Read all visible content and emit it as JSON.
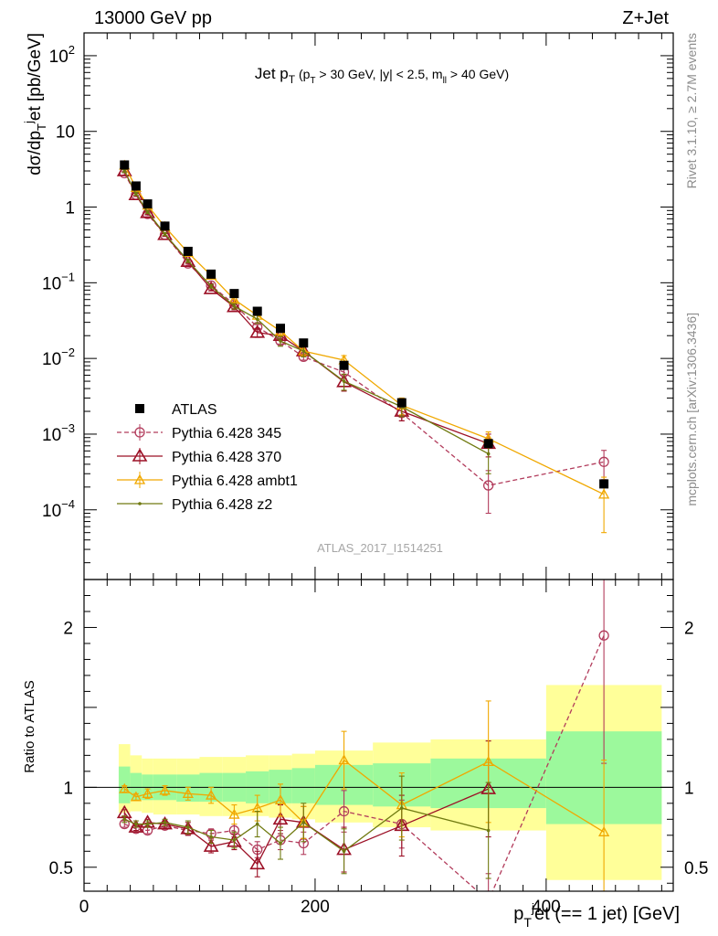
{
  "header": {
    "left": "13000 GeV pp",
    "right": "Z+Jet"
  },
  "side_labels": {
    "rivet": "Rivet 3.1.10, ≥ 2.7M events",
    "mcplots": "mcplots.cern.ch [arXiv:1306.3436]"
  },
  "watermark": "ATLAS_2017_I1514251",
  "colors": {
    "ATLAS": "#000000",
    "p345": "#b23c5c",
    "p370": "#9c1026",
    "ambt1": "#f0a800",
    "z2": "#707a10",
    "band_green": "#9cf99c",
    "band_yellow": "#ffff99"
  },
  "chart_data": [
    {
      "type": "line",
      "panel": "main",
      "title": "Jet p_T (p_T > 30 GeV, |y| < 2.5, m_ll > 40 GeV)",
      "ylabel": "dσ/dp_T^j et [pb/GeV]",
      "xlim": [
        0,
        510
      ],
      "ylim": [
        1.2e-05,
        200
      ],
      "yscale": "log",
      "y_ticks": [
        0.0001,
        0.001,
        0.01,
        0.1,
        1,
        10,
        100
      ],
      "y_tick_labels": [
        "10^-4",
        "10^-3",
        "10^-2",
        "10^-1",
        "1",
        "10",
        "10^2"
      ],
      "x": [
        35,
        45,
        55,
        70,
        90,
        110,
        130,
        150,
        170,
        190,
        225,
        275,
        350,
        450
      ],
      "series": [
        {
          "name": "ATLAS",
          "marker": "square",
          "values": [
            3.6,
            1.9,
            1.1,
            0.56,
            0.26,
            0.13,
            0.072,
            0.042,
            0.025,
            0.016,
            0.0081,
            0.0026,
            0.00075,
            0.00022
          ]
        },
        {
          "name": "Pythia 6.428 345",
          "marker": "circle",
          "dashed": true,
          "values": [
            2.8,
            1.45,
            0.81,
            0.43,
            0.18,
            0.092,
            0.052,
            0.026,
            0.017,
            0.0105,
            0.0066,
            0.0019,
            0.00021,
            0.00043
          ],
          "err": [
            0.15,
            0.07,
            0.04,
            0.02,
            0.009,
            0.005,
            0.004,
            0.002,
            0.0015,
            0.001,
            0.0011,
            0.0004,
            0.00012,
            0.00018
          ]
        },
        {
          "name": "Pythia 6.428 370",
          "marker": "triangle",
          "values": [
            3.0,
            1.45,
            0.84,
            0.43,
            0.19,
            0.083,
            0.048,
            0.022,
            0.02,
            0.0125,
            0.0049,
            0.002,
            0.00075,
            null
          ],
          "err": [
            0.15,
            0.07,
            0.04,
            0.02,
            0.01,
            0.005,
            0.004,
            0.003,
            0.002,
            0.0015,
            0.0012,
            0.0005,
            0.00025,
            null
          ]
        },
        {
          "name": "Pythia 6.428 ambt1",
          "marker": "triangle-open",
          "values": [
            3.55,
            1.8,
            1.05,
            0.55,
            0.25,
            0.125,
            0.06,
            0.037,
            0.023,
            0.0125,
            0.0095,
            0.0024,
            0.00087,
            0.00016
          ],
          "err": [
            0.15,
            0.08,
            0.05,
            0.025,
            0.012,
            0.007,
            0.005,
            0.004,
            0.003,
            0.0018,
            0.0014,
            0.0006,
            0.0002,
            0.00011
          ]
        },
        {
          "name": "Pythia 6.428 z2",
          "marker": "dot",
          "values": [
            3.0,
            1.5,
            0.86,
            0.44,
            0.195,
            0.09,
            0.049,
            0.033,
            0.017,
            0.0125,
            0.005,
            0.0023,
            0.00055,
            null
          ],
          "err": [
            0.15,
            0.07,
            0.04,
            0.02,
            0.01,
            0.005,
            0.004,
            0.004,
            0.0025,
            0.002,
            0.0012,
            0.0006,
            0.00025,
            null
          ]
        }
      ],
      "legend": "lower-left"
    },
    {
      "type": "line",
      "panel": "ratio",
      "ylabel": "Ratio to ATLAS",
      "xlabel": "p_T^j et (== 1 jet) [GeV]",
      "xlim": [
        0,
        510
      ],
      "ylim": [
        0.35,
        2.3
      ],
      "x_ticks": [
        0,
        200,
        400
      ],
      "y_ticks": [
        0.5,
        1,
        2
      ],
      "bins": [
        [
          30,
          40
        ],
        [
          40,
          50
        ],
        [
          50,
          60
        ],
        [
          60,
          80
        ],
        [
          80,
          100
        ],
        [
          100,
          120
        ],
        [
          120,
          140
        ],
        [
          140,
          160
        ],
        [
          160,
          180
        ],
        [
          180,
          200
        ],
        [
          200,
          250
        ],
        [
          250,
          300
        ],
        [
          300,
          400
        ],
        [
          400,
          500
        ]
      ],
      "band_green": [
        [
          0.9,
          1.13
        ],
        [
          0.92,
          1.09
        ],
        [
          0.92,
          1.08
        ],
        [
          0.92,
          1.08
        ],
        [
          0.91,
          1.08
        ],
        [
          0.91,
          1.09
        ],
        [
          0.91,
          1.09
        ],
        [
          0.9,
          1.1
        ],
        [
          0.9,
          1.11
        ],
        [
          0.9,
          1.12
        ],
        [
          0.89,
          1.14
        ],
        [
          0.88,
          1.15
        ],
        [
          0.87,
          1.18
        ],
        [
          0.77,
          1.35
        ]
      ],
      "band_yellow": [
        [
          0.84,
          1.27
        ],
        [
          0.85,
          1.2
        ],
        [
          0.84,
          1.18
        ],
        [
          0.83,
          1.18
        ],
        [
          0.83,
          1.18
        ],
        [
          0.82,
          1.19
        ],
        [
          0.82,
          1.19
        ],
        [
          0.82,
          1.2
        ],
        [
          0.81,
          1.2
        ],
        [
          0.8,
          1.21
        ],
        [
          0.78,
          1.23
        ],
        [
          0.75,
          1.28
        ],
        [
          0.73,
          1.3
        ],
        [
          0.42,
          1.64
        ]
      ],
      "x": [
        35,
        45,
        55,
        70,
        90,
        110,
        130,
        150,
        170,
        190,
        225,
        275,
        350,
        450
      ],
      "series": [
        {
          "name": "Pythia 6.428 345",
          "marker": "circle",
          "dashed": true,
          "values": [
            0.77,
            0.74,
            0.73,
            0.76,
            0.73,
            0.71,
            0.73,
            0.61,
            0.67,
            0.65,
            0.85,
            0.77,
            0.29,
            1.95
          ],
          "err": [
            0.02,
            0.02,
            0.02,
            0.02,
            0.03,
            0.03,
            0.04,
            0.05,
            0.06,
            0.07,
            0.13,
            0.15,
            0.17,
            0.8
          ]
        },
        {
          "name": "Pythia 6.428 370",
          "marker": "triangle",
          "values": [
            0.84,
            0.75,
            0.78,
            0.77,
            0.74,
            0.63,
            0.66,
            0.52,
            0.8,
            0.78,
            0.61,
            0.76,
            0.99,
            null
          ],
          "err": [
            0.02,
            0.02,
            0.02,
            0.02,
            0.04,
            0.04,
            0.05,
            0.08,
            0.09,
            0.1,
            0.14,
            0.19,
            0.3,
            null
          ]
        },
        {
          "name": "Pythia 6.428 ambt1",
          "marker": "triangle-open",
          "values": [
            0.99,
            0.94,
            0.96,
            0.98,
            0.96,
            0.95,
            0.83,
            0.87,
            0.92,
            0.78,
            1.17,
            0.89,
            1.16,
            0.72
          ],
          "err": [
            0.02,
            0.02,
            0.03,
            0.03,
            0.04,
            0.05,
            0.06,
            0.08,
            0.1,
            0.1,
            0.18,
            0.2,
            0.38,
            0.45
          ]
        },
        {
          "name": "Pythia 6.428 z2",
          "marker": "dot",
          "values": [
            0.8,
            0.77,
            0.77,
            0.78,
            0.75,
            0.69,
            0.67,
            0.77,
            0.65,
            0.78,
            0.6,
            0.87,
            0.73,
            null
          ],
          "err": [
            0.02,
            0.02,
            0.02,
            0.02,
            0.04,
            0.04,
            0.05,
            0.08,
            0.1,
            0.12,
            0.14,
            0.2,
            0.3,
            null
          ]
        }
      ]
    }
  ]
}
